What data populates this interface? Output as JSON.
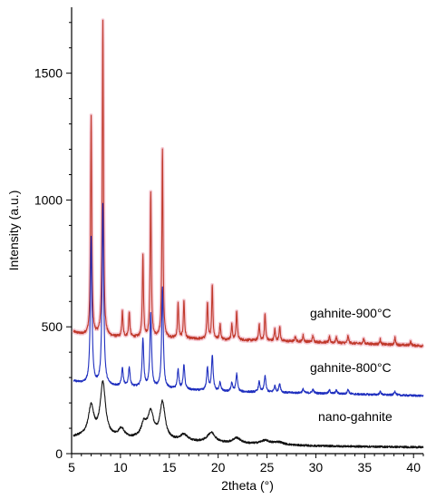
{
  "chart_data": {
    "type": "line",
    "title": "",
    "xlabel": "2theta (°)",
    "ylabel": "Intensity (a.u.)",
    "xlim": [
      5,
      41
    ],
    "ylim": [
      0,
      1760
    ],
    "x_ticks": [
      5,
      10,
      15,
      20,
      25,
      30,
      35,
      40
    ],
    "y_ticks": [
      0,
      500,
      1000,
      1500
    ],
    "grid": false,
    "series": [
      {
        "name": "gahnite-900°C",
        "color": "#c0392b",
        "halo_color": "#f2b8c6",
        "baseline": [
          [
            5.2,
            480
          ],
          [
            6.0,
            470
          ],
          [
            9.0,
            460
          ],
          [
            15.0,
            455
          ],
          [
            20.0,
            450
          ],
          [
            30.0,
            440
          ],
          [
            41.0,
            425
          ]
        ],
        "peaks": [
          {
            "x": 7.0,
            "height": 860,
            "width": 0.07
          },
          {
            "x": 8.2,
            "height": 1240,
            "width": 0.07
          },
          {
            "x": 10.2,
            "height": 100,
            "width": 0.07
          },
          {
            "x": 10.9,
            "height": 100,
            "width": 0.07
          },
          {
            "x": 12.3,
            "height": 320,
            "width": 0.07
          },
          {
            "x": 13.1,
            "height": 575,
            "width": 0.07
          },
          {
            "x": 14.3,
            "height": 745,
            "width": 0.07
          },
          {
            "x": 15.9,
            "height": 135,
            "width": 0.07
          },
          {
            "x": 16.5,
            "height": 150,
            "width": 0.07
          },
          {
            "x": 18.9,
            "height": 145,
            "width": 0.07
          },
          {
            "x": 19.4,
            "height": 215,
            "width": 0.07
          },
          {
            "x": 20.2,
            "height": 60,
            "width": 0.07
          },
          {
            "x": 21.4,
            "height": 60,
            "width": 0.07
          },
          {
            "x": 21.9,
            "height": 115,
            "width": 0.07
          },
          {
            "x": 24.2,
            "height": 65,
            "width": 0.07
          },
          {
            "x": 24.8,
            "height": 105,
            "width": 0.07
          },
          {
            "x": 25.8,
            "height": 45,
            "width": 0.07
          },
          {
            "x": 26.3,
            "height": 60,
            "width": 0.07
          },
          {
            "x": 27.9,
            "height": 20,
            "width": 0.07
          },
          {
            "x": 28.7,
            "height": 25,
            "width": 0.07
          },
          {
            "x": 29.7,
            "height": 25,
            "width": 0.07
          },
          {
            "x": 31.4,
            "height": 22,
            "width": 0.07
          },
          {
            "x": 32.1,
            "height": 22,
            "width": 0.07
          },
          {
            "x": 33.3,
            "height": 30,
            "width": 0.07
          },
          {
            "x": 34.9,
            "height": 20,
            "width": 0.07
          },
          {
            "x": 36.6,
            "height": 20,
            "width": 0.07
          },
          {
            "x": 38.1,
            "height": 28,
            "width": 0.07
          },
          {
            "x": 39.7,
            "height": 15,
            "width": 0.07
          }
        ]
      },
      {
        "name": "gahnite-800°C",
        "color": "#1f2fbf",
        "halo_color": "",
        "baseline": [
          [
            5.2,
            285
          ],
          [
            7.0,
            270
          ],
          [
            10.0,
            265
          ],
          [
            15.0,
            255
          ],
          [
            20.0,
            245
          ],
          [
            30.0,
            238
          ],
          [
            41.0,
            228
          ]
        ],
        "peaks": [
          {
            "x": 7.0,
            "height": 580,
            "width": 0.1
          },
          {
            "x": 8.2,
            "height": 710,
            "width": 0.1
          },
          {
            "x": 10.2,
            "height": 70,
            "width": 0.1
          },
          {
            "x": 10.9,
            "height": 75,
            "width": 0.1
          },
          {
            "x": 12.3,
            "height": 190,
            "width": 0.1
          },
          {
            "x": 13.1,
            "height": 290,
            "width": 0.1
          },
          {
            "x": 14.3,
            "height": 395,
            "width": 0.1
          },
          {
            "x": 15.9,
            "height": 75,
            "width": 0.1
          },
          {
            "x": 16.5,
            "height": 95,
            "width": 0.1
          },
          {
            "x": 18.9,
            "height": 90,
            "width": 0.1
          },
          {
            "x": 19.4,
            "height": 140,
            "width": 0.1
          },
          {
            "x": 20.2,
            "height": 35,
            "width": 0.1
          },
          {
            "x": 21.4,
            "height": 35,
            "width": 0.1
          },
          {
            "x": 21.9,
            "height": 70,
            "width": 0.1
          },
          {
            "x": 24.2,
            "height": 40,
            "width": 0.1
          },
          {
            "x": 24.8,
            "height": 65,
            "width": 0.1
          },
          {
            "x": 25.8,
            "height": 25,
            "width": 0.1
          },
          {
            "x": 26.3,
            "height": 35,
            "width": 0.1
          },
          {
            "x": 28.7,
            "height": 15,
            "width": 0.1
          },
          {
            "x": 29.7,
            "height": 15,
            "width": 0.1
          },
          {
            "x": 31.4,
            "height": 13,
            "width": 0.1
          },
          {
            "x": 32.1,
            "height": 13,
            "width": 0.1
          },
          {
            "x": 33.3,
            "height": 18,
            "width": 0.1
          },
          {
            "x": 36.6,
            "height": 12,
            "width": 0.1
          },
          {
            "x": 38.1,
            "height": 15,
            "width": 0.1
          }
        ]
      },
      {
        "name": "nano-gahnite",
        "color": "#111111",
        "halo_color": "",
        "baseline": [
          [
            5.2,
            65
          ],
          [
            6.5,
            70
          ],
          [
            10.0,
            60
          ],
          [
            15.0,
            50
          ],
          [
            20.0,
            40
          ],
          [
            30.0,
            30
          ],
          [
            41.0,
            25
          ]
        ],
        "peaks": [
          {
            "x": 7.0,
            "height": 115,
            "width": 0.32
          },
          {
            "x": 8.2,
            "height": 210,
            "width": 0.32
          },
          {
            "x": 10.1,
            "height": 35,
            "width": 0.35
          },
          {
            "x": 12.4,
            "height": 55,
            "width": 0.35
          },
          {
            "x": 13.1,
            "height": 100,
            "width": 0.35
          },
          {
            "x": 14.3,
            "height": 145,
            "width": 0.32
          },
          {
            "x": 16.5,
            "height": 25,
            "width": 0.45
          },
          {
            "x": 19.3,
            "height": 40,
            "width": 0.5
          },
          {
            "x": 21.9,
            "height": 22,
            "width": 0.5
          },
          {
            "x": 24.8,
            "height": 15,
            "width": 0.6
          },
          {
            "x": 26.2,
            "height": 10,
            "width": 0.6
          }
        ]
      }
    ],
    "series_labels": [
      "gahnite-900°C",
      "gahnite-800°C",
      "nano-gahnite"
    ]
  }
}
